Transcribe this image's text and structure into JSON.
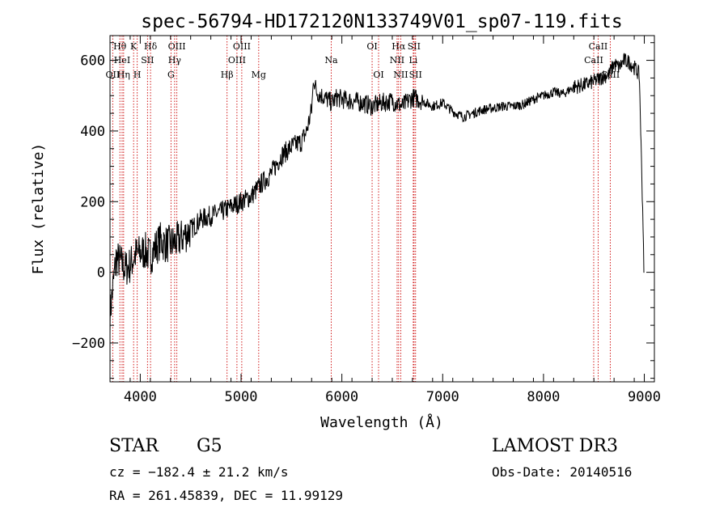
{
  "chart_data": {
    "type": "line",
    "title": "spec-56794-HD172120N133749V01_sp07-119.fits",
    "xlabel": "Wavelength (Å)",
    "ylabel": "Flux (relative)",
    "xlim": [
      3700,
      9100
    ],
    "ylim": [
      -310,
      670
    ],
    "xticks": [
      4000,
      5000,
      6000,
      7000,
      8000,
      9000
    ],
    "yticks": [
      -200,
      0,
      200,
      400,
      600
    ],
    "series": [
      {
        "name": "flux",
        "x": [
          3700,
          3760,
          3800,
          3850,
          3900,
          3950,
          4000,
          4050,
          4100,
          4150,
          4200,
          4250,
          4300,
          4350,
          4400,
          4500,
          4600,
          4700,
          4800,
          4900,
          5000,
          5100,
          5200,
          5300,
          5400,
          5500,
          5600,
          5650,
          5700,
          5720,
          5750,
          5800,
          5850,
          5900,
          5950,
          6000,
          6100,
          6200,
          6300,
          6400,
          6500,
          6600,
          6700,
          6800,
          6900,
          7000,
          7100,
          7200,
          7300,
          7400,
          7500,
          7600,
          7700,
          7800,
          7900,
          8000,
          8100,
          8200,
          8300,
          8400,
          8500,
          8600,
          8650,
          8700,
          8750,
          8800,
          8850,
          8900,
          8950,
          9000
        ],
        "y": [
          -120,
          40,
          30,
          10,
          20,
          50,
          55,
          60,
          45,
          70,
          90,
          80,
          80,
          85,
          95,
          120,
          150,
          160,
          170,
          185,
          200,
          215,
          250,
          280,
          330,
          355,
          370,
          400,
          460,
          550,
          510,
          500,
          490,
          480,
          495,
          490,
          485,
          480,
          470,
          480,
          485,
          470,
          495,
          485,
          470,
          480,
          455,
          440,
          450,
          460,
          465,
          470,
          470,
          475,
          490,
          500,
          510,
          505,
          525,
          530,
          540,
          555,
          560,
          590,
          580,
          600,
          595,
          580,
          560,
          0
        ]
      }
    ],
    "line_markers": [
      {
        "label": "Hθ",
        "x": 3798,
        "row": 1
      },
      {
        "label": "OII",
        "x": 3727,
        "row": 3
      },
      {
        "label": "HeI",
        "x": 3820,
        "row": 2
      },
      {
        "label": "Hη",
        "x": 3835,
        "row": 3
      },
      {
        "label": "K",
        "x": 3934,
        "row": 1
      },
      {
        "label": "SII",
        "x": 4072,
        "row": 2
      },
      {
        "label": "H",
        "x": 3970,
        "row": 3
      },
      {
        "label": "Hδ",
        "x": 4102,
        "row": 1
      },
      {
        "label": "OIII",
        "x": 4363,
        "row": 1
      },
      {
        "label": "Hγ",
        "x": 4341,
        "row": 2
      },
      {
        "label": "G",
        "x": 4305,
        "row": 3
      },
      {
        "label": "Hβ",
        "x": 4861,
        "row": 3
      },
      {
        "label": "OIII",
        "x": 5007,
        "row": 1
      },
      {
        "label": "OIII",
        "x": 4959,
        "row": 2
      },
      {
        "label": "Mg",
        "x": 5175,
        "row": 3
      },
      {
        "label": "Na",
        "x": 5894,
        "row": 2
      },
      {
        "label": "OI",
        "x": 6300,
        "row": 1
      },
      {
        "label": "OI",
        "x": 6364,
        "row": 3
      },
      {
        "label": "Hα",
        "x": 6563,
        "row": 1
      },
      {
        "label": "SII",
        "x": 6716,
        "row": 1
      },
      {
        "label": "NII",
        "x": 6548,
        "row": 2
      },
      {
        "label": "Li",
        "x": 6708,
        "row": 2
      },
      {
        "label": "NII",
        "x": 6584,
        "row": 3
      },
      {
        "label": "SII",
        "x": 6731,
        "row": 3
      },
      {
        "label": "CaII",
        "x": 8542,
        "row": 1
      },
      {
        "label": "CaII",
        "x": 8498,
        "row": 2
      },
      {
        "label": "CaII",
        "x": 8662,
        "row": 3
      }
    ]
  },
  "info": {
    "object_class": "STAR",
    "subclass": "G5",
    "survey": "LAMOST DR3",
    "cz": "cz = −182.4 ± 21.2 km/s",
    "obs_date": "Obs-Date: 20140516",
    "coords": "RA = 261.45839, DEC =  11.99129"
  },
  "colors": {
    "line_marker": "#cc0000",
    "spectrum": "#000000"
  }
}
